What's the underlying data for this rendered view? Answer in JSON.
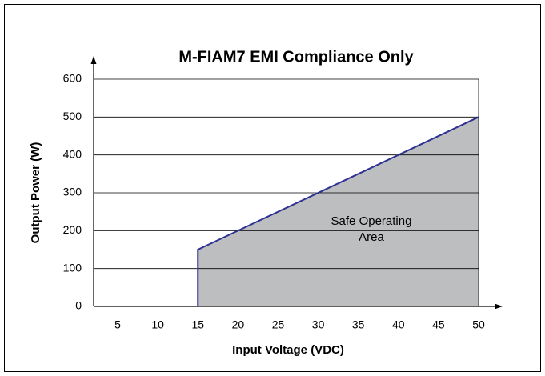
{
  "chart_data": {
    "type": "area",
    "title": "M-FIAM7 EMI Compliance Only",
    "x_label": "Input Voltage (VDC)",
    "y_label": "Output Power (W)",
    "annotation": [
      "Safe Operating",
      "Area"
    ],
    "x": [
      15,
      15,
      50
    ],
    "series": [
      {
        "color": "#2e3192",
        "fill": "#bcbec0",
        "values": [
          0,
          150,
          500
        ]
      }
    ],
    "xlim": [
      2,
      50
    ],
    "xticks": [
      5,
      10,
      15,
      20,
      25,
      30,
      35,
      40,
      45,
      50
    ],
    "ylim": [
      0,
      600
    ],
    "yticks": [
      0,
      100,
      200,
      300,
      400,
      500,
      600
    ],
    "grid": true
  }
}
